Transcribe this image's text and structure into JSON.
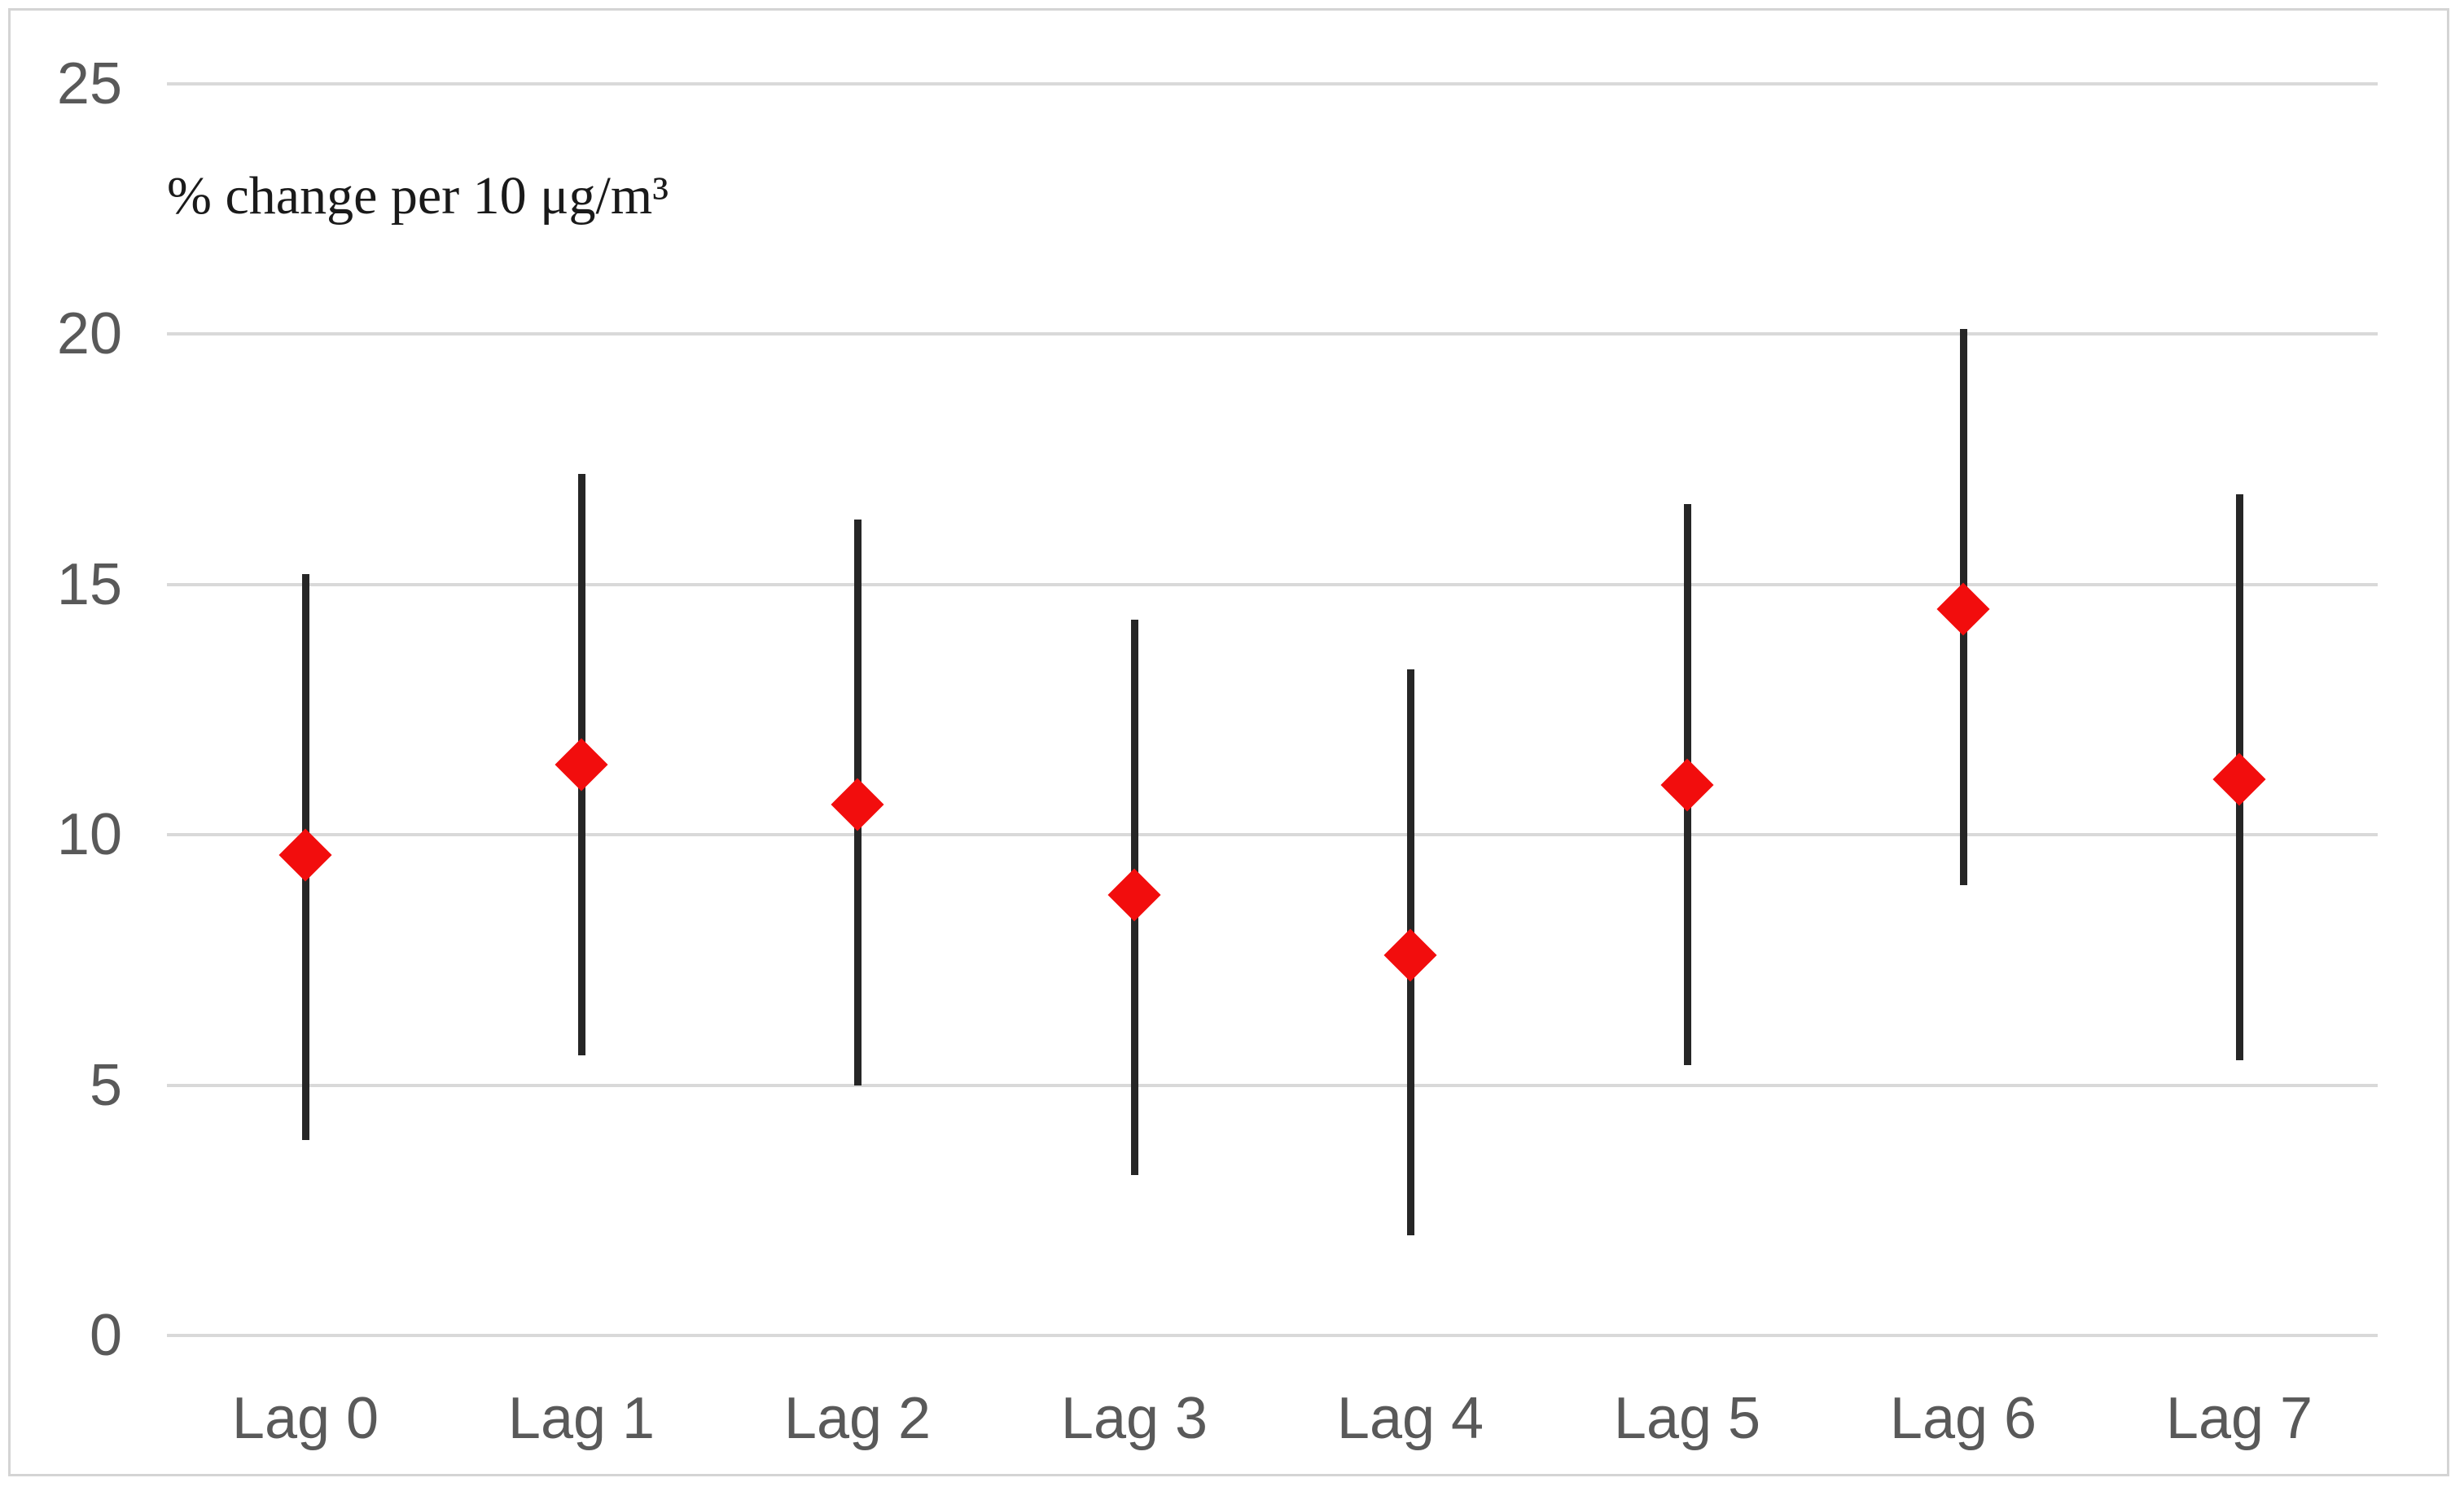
{
  "chart_data": {
    "type": "scatter",
    "subtype": "point-estimates-with-error-bars",
    "title": "% change per 10 μg/m³",
    "ylabel": "% change per 10 μg/m³",
    "xlabel": "",
    "categories": [
      "Lag 0",
      "Lag 1",
      "Lag 2",
      "Lag 3",
      "Lag 4",
      "Lag 5",
      "Lag 6",
      "Lag 7"
    ],
    "series": [
      {
        "name": "% change per 10 μg/m³",
        "values": [
          9.6,
          11.4,
          10.6,
          8.8,
          7.6,
          11.0,
          14.5,
          11.1
        ],
        "ci_lower": [
          3.9,
          5.6,
          5.0,
          3.2,
          2.0,
          5.4,
          9.0,
          5.5
        ],
        "ci_upper": [
          15.2,
          17.2,
          16.3,
          14.3,
          13.3,
          16.6,
          20.1,
          16.8
        ]
      }
    ],
    "yticks": [
      0,
      5,
      10,
      15,
      20,
      25
    ],
    "ytick_labels": [
      "0",
      "5",
      "10",
      "15",
      "20",
      "25"
    ],
    "ylim": [
      0,
      25.6
    ],
    "grid": true,
    "legend": false,
    "marker": "diamond",
    "colors": {
      "marker": "#f20d0d",
      "error_bar": "#262626",
      "gridline": "#d9d9d9",
      "axis_text": "#595959",
      "title_text": "#1a1a1a",
      "border": "#d4d4d4",
      "background": "#ffffff"
    }
  }
}
